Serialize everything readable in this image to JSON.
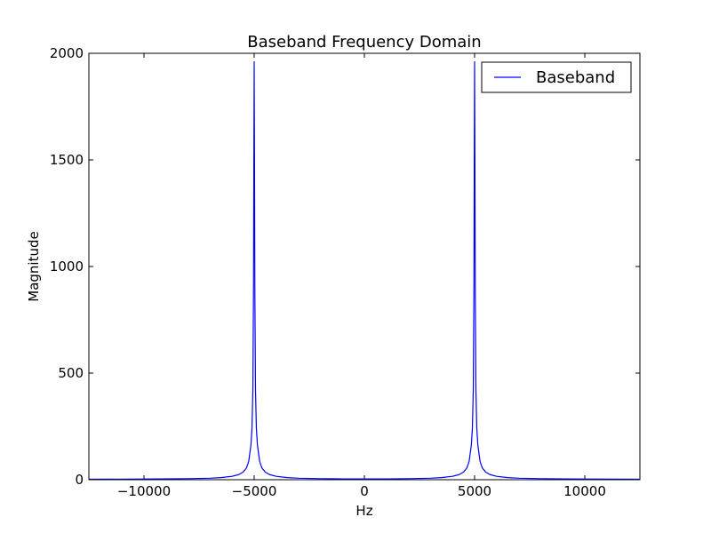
{
  "chart_data": {
    "type": "line",
    "title": "Baseband Frequency Domain",
    "xlabel": "Hz",
    "ylabel": "Magnitude",
    "xlim": [
      -12500,
      12500
    ],
    "ylim": [
      0,
      2000
    ],
    "xticks": [
      -10000,
      -5000,
      0,
      5000,
      10000
    ],
    "xtick_labels": [
      "−10000",
      "−5000",
      "0",
      "5000",
      "10000"
    ],
    "yticks": [
      0,
      500,
      1000,
      1500,
      2000
    ],
    "ytick_labels": [
      "0",
      "500",
      "1000",
      "1500",
      "2000"
    ],
    "grid": false,
    "legend_position": "top-right",
    "series": [
      {
        "name": "Baseband",
        "color": "#0000ff",
        "peaks": [
          {
            "x": -5000,
            "y": 1960
          },
          {
            "x": 5000,
            "y": 1960
          }
        ],
        "points": [
          [
            -12500,
            2
          ],
          [
            -10000,
            3
          ],
          [
            -8000,
            5
          ],
          [
            -7000,
            7
          ],
          [
            -6500,
            10
          ],
          [
            -6000,
            16
          ],
          [
            -5700,
            24
          ],
          [
            -5500,
            36
          ],
          [
            -5350,
            55
          ],
          [
            -5250,
            85
          ],
          [
            -5150,
            160
          ],
          [
            -5100,
            240
          ],
          [
            -5060,
            420
          ],
          [
            -5030,
            900
          ],
          [
            -5015,
            1500
          ],
          [
            -5000,
            1960
          ],
          [
            -4985,
            1500
          ],
          [
            -4970,
            900
          ],
          [
            -4940,
            420
          ],
          [
            -4900,
            240
          ],
          [
            -4850,
            160
          ],
          [
            -4750,
            85
          ],
          [
            -4650,
            55
          ],
          [
            -4500,
            36
          ],
          [
            -4300,
            24
          ],
          [
            -4000,
            16
          ],
          [
            -3500,
            10
          ],
          [
            -3000,
            7
          ],
          [
            -2000,
            5
          ],
          [
            -1000,
            4
          ],
          [
            0,
            4
          ],
          [
            1000,
            4
          ],
          [
            2000,
            5
          ],
          [
            3000,
            7
          ],
          [
            3500,
            10
          ],
          [
            4000,
            16
          ],
          [
            4300,
            24
          ],
          [
            4500,
            36
          ],
          [
            4650,
            55
          ],
          [
            4750,
            85
          ],
          [
            4850,
            160
          ],
          [
            4900,
            240
          ],
          [
            4940,
            420
          ],
          [
            4970,
            900
          ],
          [
            4985,
            1500
          ],
          [
            5000,
            1960
          ],
          [
            5015,
            1500
          ],
          [
            5030,
            900
          ],
          [
            5060,
            420
          ],
          [
            5100,
            240
          ],
          [
            5150,
            160
          ],
          [
            5250,
            85
          ],
          [
            5350,
            55
          ],
          [
            5500,
            36
          ],
          [
            5700,
            24
          ],
          [
            6000,
            16
          ],
          [
            6500,
            10
          ],
          [
            7000,
            7
          ],
          [
            8000,
            5
          ],
          [
            10000,
            3
          ],
          [
            12500,
            2
          ]
        ]
      }
    ]
  }
}
